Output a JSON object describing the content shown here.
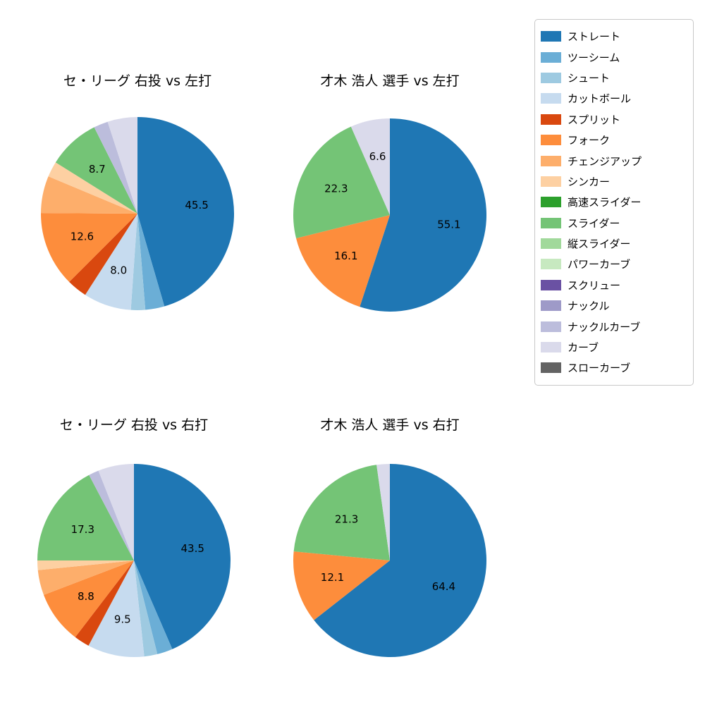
{
  "figure": {
    "background": "#ffffff"
  },
  "legend": {
    "items": [
      {
        "label": "ストレート",
        "color": "#1f77b4"
      },
      {
        "label": "ツーシーム",
        "color": "#6baed6"
      },
      {
        "label": "シュート",
        "color": "#9ecae1"
      },
      {
        "label": "カットボール",
        "color": "#c6dbef"
      },
      {
        "label": "スプリット",
        "color": "#d9480f"
      },
      {
        "label": "フォーク",
        "color": "#fd8d3c"
      },
      {
        "label": "チェンジアップ",
        "color": "#fdae6b"
      },
      {
        "label": "シンカー",
        "color": "#fdd0a2"
      },
      {
        "label": "高速スライダー",
        "color": "#2ca02c"
      },
      {
        "label": "スライダー",
        "color": "#74c476"
      },
      {
        "label": "縦スライダー",
        "color": "#a1d99b"
      },
      {
        "label": "パワーカーブ",
        "color": "#c7e9c0"
      },
      {
        "label": "スクリュー",
        "color": "#6a51a3"
      },
      {
        "label": "ナックル",
        "color": "#9e9ac8"
      },
      {
        "label": "ナックルカーブ",
        "color": "#bcbddc"
      },
      {
        "label": "カーブ",
        "color": "#dadaeb"
      },
      {
        "label": "スローカーブ",
        "color": "#636363"
      }
    ]
  },
  "chart_data": [
    {
      "type": "pie",
      "title": "セ・リーグ 右投 vs 左打",
      "start_angle_deg": 90,
      "direction": "clockwise",
      "slices": [
        {
          "label": "ストレート",
          "value": 45.5,
          "labeled": true
        },
        {
          "label": "ツーシーム",
          "value": 3.2,
          "labeled": false
        },
        {
          "label": "シュート",
          "value": 2.4,
          "labeled": false
        },
        {
          "label": "カットボール",
          "value": 8.0,
          "labeled": true
        },
        {
          "label": "スプリット",
          "value": 3.4,
          "labeled": false
        },
        {
          "label": "フォーク",
          "value": 12.6,
          "labeled": true
        },
        {
          "label": "チェンジアップ",
          "value": 6.2,
          "labeled": false
        },
        {
          "label": "シンカー",
          "value": 2.6,
          "labeled": false
        },
        {
          "label": "スライダー",
          "value": 8.7,
          "labeled": true
        },
        {
          "label": "ナックルカーブ",
          "value": 2.4,
          "labeled": false
        },
        {
          "label": "カーブ",
          "value": 5.0,
          "labeled": false
        }
      ]
    },
    {
      "type": "pie",
      "title": "才木 浩人 選手 vs 左打",
      "start_angle_deg": 90,
      "direction": "clockwise",
      "slices": [
        {
          "label": "ストレート",
          "value": 55.1,
          "labeled": true
        },
        {
          "label": "フォーク",
          "value": 16.1,
          "labeled": true
        },
        {
          "label": "スライダー",
          "value": 22.3,
          "labeled": true
        },
        {
          "label": "カーブ",
          "value": 6.6,
          "labeled": true
        }
      ]
    },
    {
      "type": "pie",
      "title": "セ・リーグ 右投 vs 右打",
      "start_angle_deg": 90,
      "direction": "clockwise",
      "slices": [
        {
          "label": "ストレート",
          "value": 43.5,
          "labeled": true
        },
        {
          "label": "ツーシーム",
          "value": 2.6,
          "labeled": false
        },
        {
          "label": "シュート",
          "value": 2.2,
          "labeled": false
        },
        {
          "label": "カットボール",
          "value": 9.5,
          "labeled": true
        },
        {
          "label": "スプリット",
          "value": 2.6,
          "labeled": false
        },
        {
          "label": "フォーク",
          "value": 8.8,
          "labeled": true
        },
        {
          "label": "チェンジアップ",
          "value": 4.2,
          "labeled": false
        },
        {
          "label": "シンカー",
          "value": 1.6,
          "labeled": false
        },
        {
          "label": "スライダー",
          "value": 17.3,
          "labeled": true
        },
        {
          "label": "ナックルカーブ",
          "value": 1.7,
          "labeled": false
        },
        {
          "label": "カーブ",
          "value": 6.0,
          "labeled": false
        }
      ]
    },
    {
      "type": "pie",
      "title": "才木 浩人 選手 vs 右打",
      "start_angle_deg": 90,
      "direction": "clockwise",
      "slices": [
        {
          "label": "ストレート",
          "value": 64.4,
          "labeled": true
        },
        {
          "label": "フォーク",
          "value": 12.1,
          "labeled": true
        },
        {
          "label": "スライダー",
          "value": 21.3,
          "labeled": true
        },
        {
          "label": "カーブ",
          "value": 2.2,
          "labeled": false
        }
      ]
    }
  ]
}
